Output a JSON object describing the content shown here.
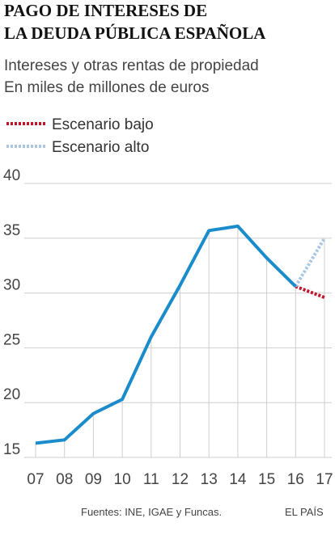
{
  "chart_data": {
    "type": "line",
    "title": [
      "PAGO DE INTERESES DE",
      "LA DEUDA PÚBLICA ESPAÑOLA"
    ],
    "subtitle": [
      "Intereses y otras rentas de propiedad",
      "En miles de millones de euros"
    ],
    "categories": [
      "07",
      "08",
      "09",
      "10",
      "11",
      "12",
      "13",
      "14",
      "15",
      "16",
      "17"
    ],
    "values": [
      16.3,
      16.6,
      19.0,
      20.3,
      26.0,
      30.7,
      35.7,
      36.1,
      33.2,
      30.6,
      null
    ],
    "color": "#1a8ccc",
    "series": [
      {
        "name": "Escenario bajo",
        "color": "#c0142b",
        "values": [
          null,
          null,
          null,
          null,
          null,
          null,
          null,
          null,
          null,
          30.6,
          29.6
        ]
      },
      {
        "name": "Escenario alto",
        "color": "#a9c6e3",
        "values": [
          null,
          null,
          null,
          null,
          null,
          null,
          null,
          null,
          null,
          30.6,
          35.0
        ]
      }
    ],
    "ylim": [
      15,
      40
    ],
    "yticks": [
      15,
      20,
      25,
      30,
      35,
      40
    ],
    "grid": true,
    "source": "Fuentes: INE, IGAE y Funcas.",
    "credit": "EL PAÍS"
  }
}
